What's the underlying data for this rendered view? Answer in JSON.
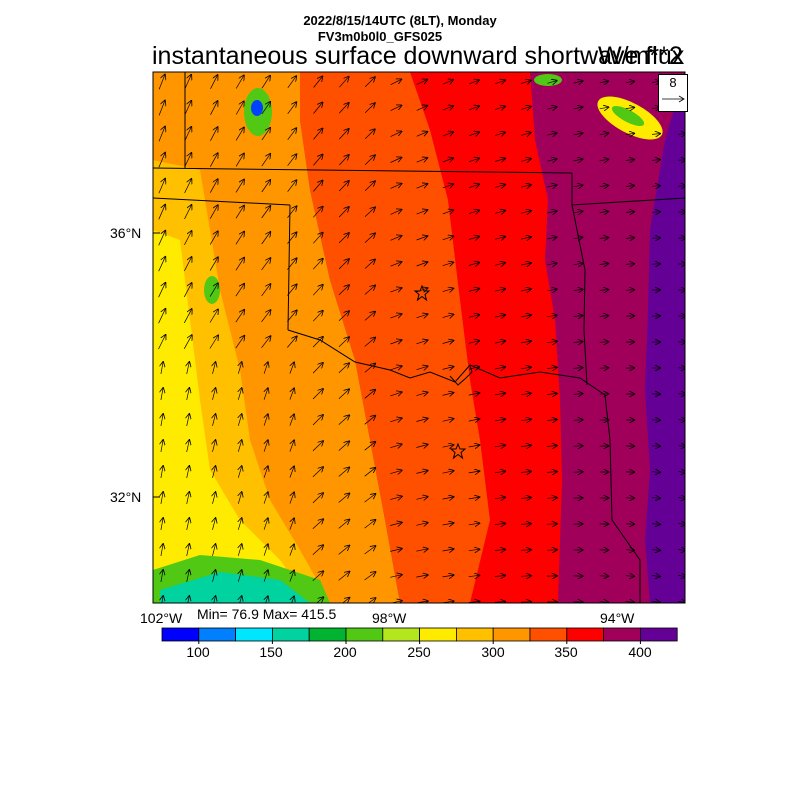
{
  "header": {
    "line1": "2022/8/15/14UTC (8LT), Monday",
    "line2": "FV3m0b0l0_GFS025",
    "title": "instantaneous surface downward shortwave flux",
    "units": "W/m**2"
  },
  "stats": {
    "text": "Min= 76.9 Max= 415.5"
  },
  "axes": {
    "lat_labels": [
      "36°N",
      "32°N"
    ],
    "lon_labels": [
      "102°W",
      "98°W",
      "94°W"
    ]
  },
  "reference_vector": {
    "value": "8"
  },
  "colorbar": {
    "colors": [
      "#0000ff",
      "#0080ff",
      "#00e6ff",
      "#00d2a0",
      "#00b432",
      "#50c814",
      "#b4e61e",
      "#ffeb00",
      "#ffc000",
      "#ff9600",
      "#ff5000",
      "#ff0000",
      "#a0005a",
      "#640096"
    ],
    "labels": [
      "100",
      "150",
      "200",
      "250",
      "300",
      "350",
      "400"
    ]
  },
  "map_colors": {
    "orange": "#ff9600",
    "amber": "#ffc000",
    "yellow": "#ffeb00",
    "red_orange": "#ff5000",
    "red": "#ff0000",
    "maroon": "#a0005a",
    "purple": "#640096",
    "green": "#50c814",
    "cyan": "#00d2a0"
  }
}
